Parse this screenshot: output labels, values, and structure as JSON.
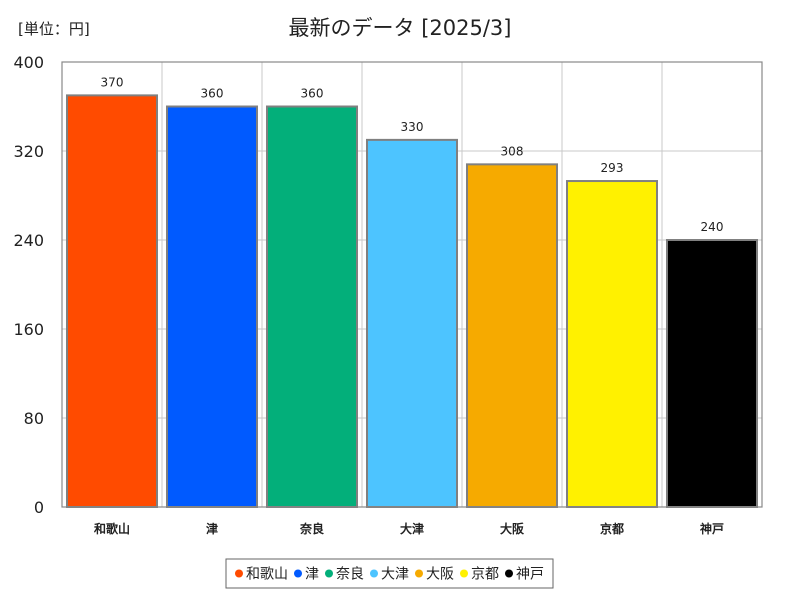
{
  "unit_label": "[単位：円]",
  "chart_data": {
    "type": "bar",
    "title": "最新のデータ [2025/3]",
    "xlabel": "",
    "ylabel": "",
    "ylim": [
      0,
      400
    ],
    "yticks": [
      0,
      80,
      160,
      240,
      320,
      400
    ],
    "grid": true,
    "legend_position": "bottom",
    "categories": [
      "和歌山",
      "津",
      "奈良",
      "大津",
      "大阪",
      "京都",
      "神戸"
    ],
    "values": [
      370,
      360,
      360,
      330,
      308,
      293,
      240
    ],
    "colors": [
      "#ff4b00",
      "#005aff",
      "#03af7a",
      "#4dc4ff",
      "#f6aa00",
      "#fff100",
      "#000000"
    ]
  }
}
